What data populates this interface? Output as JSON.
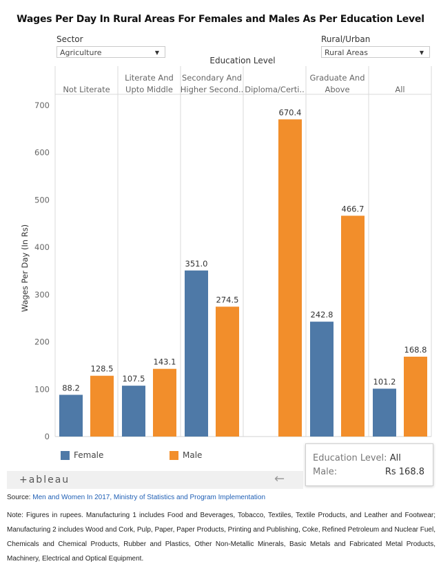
{
  "title": "Wages Per Day In Rural Areas For Females and Males As Per Education Level",
  "filters": {
    "sector": {
      "label": "Sector",
      "value": "Agriculture"
    },
    "rural_urban": {
      "label": "Rural/Urban",
      "value": "Rural Areas"
    }
  },
  "chart_data": {
    "type": "bar",
    "title": "Wages Per Day In Rural Areas For Females and Males As Per Education Level",
    "column_header": "Education Level",
    "categories": [
      [
        "Not Literate"
      ],
      [
        "Literate And",
        "Upto Middle"
      ],
      [
        "Secondary And",
        "Higher Second.."
      ],
      [
        "Diploma/Certi.."
      ],
      [
        "Graduate And",
        "Above"
      ],
      [
        "All"
      ]
    ],
    "series": [
      {
        "name": "Female",
        "color": "#4e79a7",
        "values": [
          88.2,
          107.5,
          351.0,
          null,
          242.8,
          101.2
        ],
        "labels": [
          "88.2",
          "107.5",
          "351.0",
          "",
          "242.8",
          "101.2"
        ]
      },
      {
        "name": "Male",
        "color": "#f28e2b",
        "values": [
          128.5,
          143.1,
          274.5,
          670.4,
          466.7,
          168.8
        ],
        "labels": [
          "128.5",
          "143.1",
          "274.5",
          "670.4",
          "466.7",
          "168.8"
        ]
      }
    ],
    "ylabel": "Wages Per Day (In Rs)",
    "ylim": [
      0,
      700
    ],
    "yticks": [
      0,
      100,
      200,
      300,
      400,
      500,
      600,
      700
    ],
    "grid": false,
    "legend_position": "bottom-left"
  },
  "legend": {
    "female": "Female",
    "male": "Male"
  },
  "toolbar": {
    "logo": "+ableau",
    "back": "←"
  },
  "tooltip": {
    "line1_label": "Education Level:",
    "line1_value": "All",
    "line2_label": "Male:",
    "line2_value": "Rs 168.8"
  },
  "footer": {
    "source_label": "Source:",
    "source_link": "Men and Women In 2017, Ministry of Statistics and Program Implementation",
    "note": "Note: Figures in rupees. Manufacturing 1 includes Food and Beverages, Tobacco, Textiles, Textile Products, and Leather and Footwear; Manufacturing 2 includes Wood and Cork, Pulp, Paper, Paper Products, Printing and Publishing, Coke, Refined Petroleum and Nuclear Fuel, Chemicals and Chemical Products, Rubber and Plastics, Other Non-Metallic Minerals, Basic Metals and Fabricated Metal Products, Machinery, Electrical and Optical Equipment."
  }
}
